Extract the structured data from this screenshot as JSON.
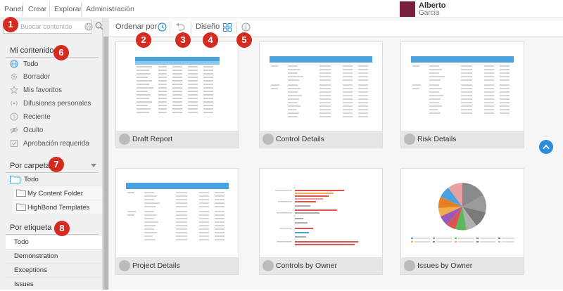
{
  "nav": {
    "items": [
      "Panel",
      "Crear",
      "Explorar",
      "Administración"
    ]
  },
  "user": {
    "first_name": "Alberto",
    "last_name": "Garcia",
    "avatar_color": "#7a1f3d"
  },
  "search": {
    "placeholder": "Buscar contenido",
    "globe_icon": "globe-icon",
    "search_icon": "search-icon"
  },
  "sidebar": {
    "my_content": {
      "title": "Mi contenido",
      "items": [
        {
          "label": "Todo",
          "icon": "globe-icon",
          "active": true
        },
        {
          "label": "Borrador",
          "icon": "gear-icon"
        },
        {
          "label": "Mis favoritos",
          "icon": "star-icon"
        },
        {
          "label": "Difusiones personales",
          "icon": "broadcast-icon"
        },
        {
          "label": "Reciente",
          "icon": "clock-icon"
        },
        {
          "label": "Oculto",
          "icon": "eye-off-icon"
        },
        {
          "label": "Aprobación requerida",
          "icon": "approval-icon"
        }
      ]
    },
    "by_folder": {
      "title": "Por carpeta",
      "all": "Todo",
      "folders": [
        "My Content Folder",
        "HighBond Templates"
      ]
    },
    "by_tag": {
      "title": "Por etiqueta",
      "tags": [
        "Todo",
        "Demonstration",
        "Exceptions",
        "Issues"
      ]
    }
  },
  "toolbar": {
    "sort_label": "Ordenar por",
    "layout_label": "Diseño"
  },
  "cards": [
    {
      "title": "Draft Report",
      "thumb": "table-blue"
    },
    {
      "title": "Control Details",
      "thumb": "table-plain"
    },
    {
      "title": "Risk Details",
      "thumb": "table-plain"
    },
    {
      "title": "Project Details",
      "thumb": "table-plain"
    },
    {
      "title": "Controls by Owner",
      "thumb": "bar-chart"
    },
    {
      "title": "Issues by Owner",
      "thumb": "pie-chart"
    }
  ],
  "badges": [
    "1",
    "2",
    "3",
    "4",
    "5",
    "6",
    "7",
    "8"
  ],
  "colors": {
    "accent": "#2a8fd8",
    "badge": "#d42a20",
    "header_blue": "#4aa3df"
  }
}
